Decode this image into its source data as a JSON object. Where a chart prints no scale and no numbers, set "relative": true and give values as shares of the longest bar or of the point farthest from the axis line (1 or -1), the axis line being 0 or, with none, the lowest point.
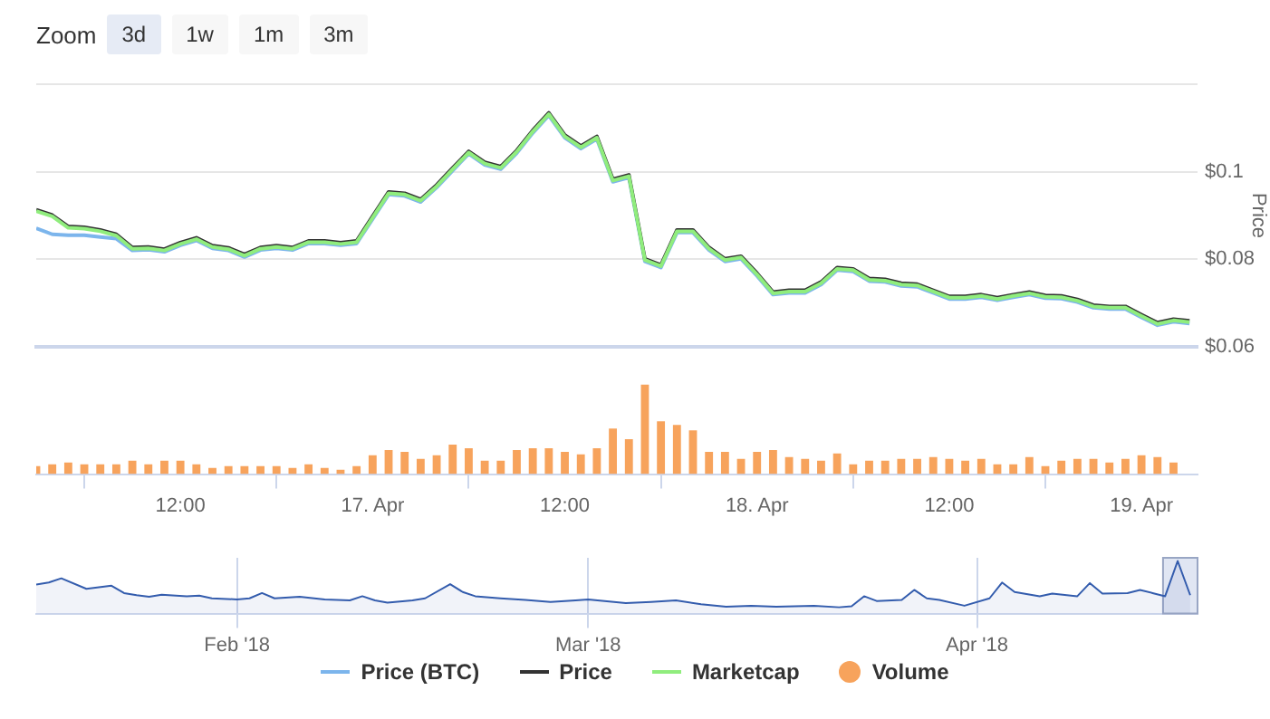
{
  "chart_data": [
    {
      "type": "line",
      "ylabel": "Price",
      "annotations": [
        "Zoom",
        "3d",
        "1w",
        "1m",
        "3m"
      ],
      "legend": "bottom",
      "grid": "y",
      "tick_labels": "y",
      "x": [
        "2018-04-16T03:00",
        "2018-04-16T04:00",
        "2018-04-16T05:00",
        "2018-04-16T06:00",
        "2018-04-16T07:00",
        "2018-04-16T08:00",
        "2018-04-16T09:00",
        "2018-04-16T10:00",
        "2018-04-16T11:00",
        "2018-04-16T12:00",
        "2018-04-16T13:00",
        "2018-04-16T14:00",
        "2018-04-16T15:00",
        "2018-04-16T16:00",
        "2018-04-16T17:00",
        "2018-04-16T18:00",
        "2018-04-16T19:00",
        "2018-04-16T20:00",
        "2018-04-16T21:00",
        "2018-04-16T22:00",
        "2018-04-16T23:00",
        "2018-04-17T00:00",
        "2018-04-17T01:00",
        "2018-04-17T02:00",
        "2018-04-17T03:00",
        "2018-04-17T04:00",
        "2018-04-17T05:00",
        "2018-04-17T06:00",
        "2018-04-17T07:00",
        "2018-04-17T08:00",
        "2018-04-17T09:00",
        "2018-04-17T10:00",
        "2018-04-17T11:00",
        "2018-04-17T12:00",
        "2018-04-17T13:00",
        "2018-04-17T14:00",
        "2018-04-17T15:00",
        "2018-04-17T16:00",
        "2018-04-17T17:00",
        "2018-04-17T18:00",
        "2018-04-17T19:00",
        "2018-04-17T20:00",
        "2018-04-17T21:00",
        "2018-04-17T22:00",
        "2018-04-17T23:00",
        "2018-04-18T00:00",
        "2018-04-18T01:00",
        "2018-04-18T02:00",
        "2018-04-18T03:00",
        "2018-04-18T04:00",
        "2018-04-18T05:00",
        "2018-04-18T06:00",
        "2018-04-18T07:00",
        "2018-04-18T08:00",
        "2018-04-18T09:00",
        "2018-04-18T10:00",
        "2018-04-18T11:00",
        "2018-04-18T12:00",
        "2018-04-18T13:00",
        "2018-04-18T14:00",
        "2018-04-18T15:00",
        "2018-04-18T16:00",
        "2018-04-18T17:00",
        "2018-04-18T18:00",
        "2018-04-18T19:00",
        "2018-04-18T20:00",
        "2018-04-18T21:00",
        "2018-04-18T22:00",
        "2018-04-18T23:00",
        "2018-04-19T00:00",
        "2018-04-19T01:00",
        "2018-04-19T02:00",
        "2018-04-19T03:00"
      ],
      "xlim": [
        "2018-04-16T03:00",
        "2018-04-19T03:30"
      ],
      "ylim": [
        0.06,
        0.12
      ],
      "yticks": [
        {
          "value": 0.06,
          "label": "$0.06"
        },
        {
          "value": 0.08,
          "label": "$0.08"
        },
        {
          "value": 0.1,
          "label": "$0.1"
        },
        {
          "value": 0.12,
          "label": null
        }
      ],
      "series": [
        {
          "name": "Price (BTC)",
          "color": "#7cb5ec",
          "values": [
            0.0871,
            0.0857,
            0.0855,
            0.0855,
            0.0851,
            0.0847,
            0.082,
            0.0822,
            0.0817,
            0.0832,
            0.0843,
            0.0825,
            0.082,
            0.0805,
            0.0821,
            0.0825,
            0.0821,
            0.0836,
            0.0836,
            0.0832,
            0.0836,
            0.0892,
            0.0948,
            0.0945,
            0.0931,
            0.0964,
            0.1003,
            0.1041,
            0.1016,
            0.1006,
            0.1043,
            0.1089,
            0.1129,
            0.1078,
            0.1053,
            0.1075,
            0.0977,
            0.0987,
            0.0795,
            0.0781,
            0.0861,
            0.0861,
            0.0821,
            0.0795,
            0.0801,
            0.0762,
            0.0719,
            0.0723,
            0.0723,
            0.0742,
            0.0775,
            0.0772,
            0.075,
            0.0748,
            0.0739,
            0.0737,
            0.0723,
            0.0709,
            0.0709,
            0.0713,
            0.0706,
            0.0713,
            0.0719,
            0.0711,
            0.071,
            0.0702,
            0.0689,
            0.0686,
            0.0686,
            0.0667,
            0.0649,
            0.0657,
            0.0653
          ]
        },
        {
          "name": "Price",
          "color": "#333333",
          "values": [
            0.0913,
            0.0901,
            0.0875,
            0.0873,
            0.0867,
            0.0857,
            0.0827,
            0.0828,
            0.0823,
            0.0838,
            0.0849,
            0.0831,
            0.0826,
            0.0811,
            0.0827,
            0.0831,
            0.0827,
            0.0842,
            0.0842,
            0.0838,
            0.0842,
            0.0898,
            0.0954,
            0.0951,
            0.0937,
            0.097,
            0.1009,
            0.1047,
            0.1022,
            0.1012,
            0.1049,
            0.1095,
            0.1135,
            0.1084,
            0.1059,
            0.1081,
            0.0983,
            0.0993,
            0.0801,
            0.0787,
            0.0867,
            0.0867,
            0.0827,
            0.0801,
            0.0807,
            0.0768,
            0.0725,
            0.0729,
            0.0729,
            0.0748,
            0.0781,
            0.0778,
            0.0756,
            0.0754,
            0.0745,
            0.0743,
            0.0729,
            0.0715,
            0.0715,
            0.0719,
            0.0712,
            0.0719,
            0.0725,
            0.0717,
            0.0716,
            0.0708,
            0.0695,
            0.0692,
            0.0692,
            0.0673,
            0.0655,
            0.0663,
            0.0659
          ]
        },
        {
          "name": "Marketcap",
          "color": "#90ed7d",
          "values": [
            0.091,
            0.0898,
            0.0872,
            0.087,
            0.0864,
            0.0854,
            0.0824,
            0.0825,
            0.082,
            0.0835,
            0.0846,
            0.0828,
            0.0823,
            0.0808,
            0.0824,
            0.0828,
            0.0824,
            0.0839,
            0.0839,
            0.0835,
            0.0839,
            0.0895,
            0.0951,
            0.0948,
            0.0934,
            0.0967,
            0.1006,
            0.1044,
            0.1019,
            0.1009,
            0.1046,
            0.1092,
            0.1132,
            0.1081,
            0.1056,
            0.1078,
            0.098,
            0.099,
            0.0798,
            0.0784,
            0.0864,
            0.0864,
            0.0824,
            0.0798,
            0.0804,
            0.0765,
            0.0722,
            0.0726,
            0.0726,
            0.0745,
            0.0778,
            0.0775,
            0.0753,
            0.0751,
            0.0742,
            0.074,
            0.0726,
            0.0712,
            0.0712,
            0.0716,
            0.0709,
            0.0716,
            0.0722,
            0.0714,
            0.0713,
            0.0705,
            0.0692,
            0.0689,
            0.0689,
            0.067,
            0.0652,
            0.066,
            0.0656
          ]
        }
      ]
    },
    {
      "type": "bar",
      "relative": true,
      "legend": "bottom",
      "x": [
        "2018-04-16T03:00",
        "2018-04-16T04:00",
        "2018-04-16T05:00",
        "2018-04-16T06:00",
        "2018-04-16T07:00",
        "2018-04-16T08:00",
        "2018-04-16T09:00",
        "2018-04-16T10:00",
        "2018-04-16T11:00",
        "2018-04-16T12:00",
        "2018-04-16T13:00",
        "2018-04-16T14:00",
        "2018-04-16T15:00",
        "2018-04-16T16:00",
        "2018-04-16T17:00",
        "2018-04-16T18:00",
        "2018-04-16T19:00",
        "2018-04-16T20:00",
        "2018-04-16T21:00",
        "2018-04-16T22:00",
        "2018-04-16T23:00",
        "2018-04-17T00:00",
        "2018-04-17T01:00",
        "2018-04-17T02:00",
        "2018-04-17T03:00",
        "2018-04-17T04:00",
        "2018-04-17T05:00",
        "2018-04-17T06:00",
        "2018-04-17T07:00",
        "2018-04-17T08:00",
        "2018-04-17T09:00",
        "2018-04-17T10:00",
        "2018-04-17T11:00",
        "2018-04-17T12:00",
        "2018-04-17T13:00",
        "2018-04-17T14:00",
        "2018-04-17T15:00",
        "2018-04-17T16:00",
        "2018-04-17T17:00",
        "2018-04-17T18:00",
        "2018-04-17T19:00",
        "2018-04-17T20:00",
        "2018-04-17T21:00",
        "2018-04-17T22:00",
        "2018-04-17T23:00",
        "2018-04-18T00:00",
        "2018-04-18T01:00",
        "2018-04-18T02:00",
        "2018-04-18T03:00",
        "2018-04-18T04:00",
        "2018-04-18T05:00",
        "2018-04-18T06:00",
        "2018-04-18T07:00",
        "2018-04-18T08:00",
        "2018-04-18T09:00",
        "2018-04-18T10:00",
        "2018-04-18T11:00",
        "2018-04-18T12:00",
        "2018-04-18T13:00",
        "2018-04-18T14:00",
        "2018-04-18T15:00",
        "2018-04-18T16:00",
        "2018-04-18T17:00",
        "2018-04-18T18:00",
        "2018-04-18T19:00",
        "2018-04-18T20:00",
        "2018-04-18T21:00",
        "2018-04-18T22:00",
        "2018-04-18T23:00",
        "2018-04-19T00:00",
        "2018-04-19T01:00",
        "2018-04-19T02:00"
      ],
      "xlim": [
        "2018-04-16T03:00",
        "2018-04-19T03:30"
      ],
      "xticks": [
        {
          "value": "2018-04-16T12:00",
          "label": "12:00"
        },
        {
          "value": "2018-04-17",
          "label": "17. Apr"
        },
        {
          "value": "2018-04-17T12:00",
          "label": "12:00"
        },
        {
          "value": "2018-04-18",
          "label": "18. Apr"
        },
        {
          "value": "2018-04-18T12:00",
          "label": "12:00"
        },
        {
          "value": "2018-04-19",
          "label": "19. Apr"
        }
      ],
      "series": [
        {
          "name": "Volume",
          "color": "#f7a35c",
          "values": [
            0.09,
            0.11,
            0.13,
            0.11,
            0.11,
            0.11,
            0.15,
            0.11,
            0.15,
            0.15,
            0.11,
            0.07,
            0.09,
            0.09,
            0.09,
            0.09,
            0.07,
            0.11,
            0.07,
            0.05,
            0.09,
            0.21,
            0.27,
            0.25,
            0.17,
            0.21,
            0.33,
            0.29,
            0.15,
            0.15,
            0.27,
            0.29,
            0.29,
            0.25,
            0.22,
            0.29,
            0.51,
            0.39,
            1,
            0.59,
            0.55,
            0.49,
            0.25,
            0.25,
            0.17,
            0.25,
            0.27,
            0.19,
            0.17,
            0.15,
            0.23,
            0.11,
            0.15,
            0.15,
            0.17,
            0.17,
            0.19,
            0.17,
            0.15,
            0.17,
            0.11,
            0.11,
            0.19,
            0.09,
            0.15,
            0.17,
            0.17,
            0.13,
            0.17,
            0.21,
            0.19,
            0.13
          ]
        }
      ]
    },
    {
      "type": "area",
      "relative": true,
      "grid": "x",
      "color": "#335cad",
      "x": [
        "2018-01-16",
        "2018-01-17",
        "2018-01-18",
        "2018-01-20",
        "2018-01-22",
        "2018-01-23",
        "2018-01-24",
        "2018-01-25",
        "2018-01-26",
        "2018-01-28",
        "2018-01-29",
        "2018-01-30",
        "2018-02-01",
        "2018-02-02",
        "2018-02-03",
        "2018-02-04",
        "2018-02-06",
        "2018-02-08",
        "2018-02-10",
        "2018-02-11",
        "2018-02-12",
        "2018-02-13",
        "2018-02-15",
        "2018-02-16",
        "2018-02-18",
        "2018-02-19",
        "2018-02-20",
        "2018-02-22",
        "2018-02-24",
        "2018-02-26",
        "2018-02-28",
        "2018-03-01",
        "2018-03-04",
        "2018-03-06",
        "2018-03-08",
        "2018-03-10",
        "2018-03-12",
        "2018-03-14",
        "2018-03-16",
        "2018-03-19",
        "2018-03-21",
        "2018-03-22",
        "2018-03-23",
        "2018-03-24",
        "2018-03-26",
        "2018-03-27",
        "2018-03-28",
        "2018-03-29",
        "2018-03-31",
        "2018-04-02",
        "2018-04-03",
        "2018-04-04",
        "2018-04-06",
        "2018-04-07",
        "2018-04-09",
        "2018-04-10",
        "2018-04-11",
        "2018-04-13",
        "2018-04-14",
        "2018-04-15",
        "2018-04-16",
        "2018-04-17",
        "2018-04-18"
      ],
      "values": [
        0.55,
        0.59,
        0.67,
        0.47,
        0.53,
        0.39,
        0.35,
        0.32,
        0.36,
        0.33,
        0.34,
        0.29,
        0.27,
        0.29,
        0.39,
        0.29,
        0.32,
        0.27,
        0.25,
        0.33,
        0.25,
        0.21,
        0.25,
        0.29,
        0.56,
        0.41,
        0.33,
        0.29,
        0.26,
        0.22,
        0.25,
        0.27,
        0.2,
        0.22,
        0.25,
        0.18,
        0.13,
        0.15,
        0.13,
        0.15,
        0.12,
        0.14,
        0.33,
        0.24,
        0.26,
        0.45,
        0.29,
        0.26,
        0.15,
        0.29,
        0.59,
        0.41,
        0.33,
        0.38,
        0.33,
        0.58,
        0.38,
        0.39,
        0.45,
        0.39,
        0.33,
        1,
        0.35
      ],
      "xlim": [
        "2018-01-16",
        "2018-04-18T14:00"
      ],
      "xticks": [
        {
          "value": "2018-02-01",
          "label": "Feb '18"
        },
        {
          "value": "2018-03-01",
          "label": "Mar '18"
        },
        {
          "value": "2018-04-01",
          "label": "Apr '18"
        }
      ],
      "bands": [
        {
          "axis": "x",
          "from": "2018-04-15T20:00",
          "to": "2018-04-18T14:00",
          "color": "#ccd6eb"
        }
      ]
    }
  ]
}
